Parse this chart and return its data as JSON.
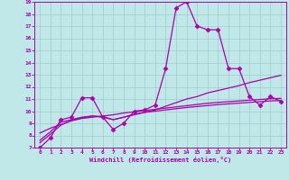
{
  "xlabel": "Windchill (Refroidissement éolien,°C)",
  "xlim": [
    -0.5,
    23.5
  ],
  "ylim": [
    7,
    19
  ],
  "yticks": [
    7,
    8,
    9,
    10,
    11,
    12,
    13,
    14,
    15,
    16,
    17,
    18,
    19
  ],
  "xticks": [
    0,
    1,
    2,
    3,
    4,
    5,
    6,
    7,
    8,
    9,
    10,
    11,
    12,
    13,
    14,
    15,
    16,
    17,
    18,
    19,
    20,
    21,
    22,
    23
  ],
  "background_color": "#c0e8e8",
  "grid_color": "#a0cccc",
  "line_color": "#aa00aa",
  "lines": [
    {
      "x": [
        0,
        1,
        2,
        3,
        4,
        5,
        6,
        7,
        8,
        9,
        10,
        11,
        12,
        13,
        14,
        15,
        16,
        17,
        18,
        19,
        20,
        21,
        22,
        23
      ],
      "y": [
        7.0,
        7.8,
        9.3,
        9.5,
        11.1,
        11.1,
        9.5,
        8.5,
        9.0,
        10.0,
        10.1,
        10.5,
        13.5,
        18.5,
        19.0,
        17.0,
        16.7,
        16.7,
        13.5,
        13.5,
        11.2,
        10.5,
        11.2,
        10.8
      ],
      "marker": "D",
      "markersize": 2.5,
      "linewidth": 0.9
    },
    {
      "x": [
        0,
        1,
        2,
        3,
        4,
        5,
        6,
        7,
        8,
        9,
        10,
        11,
        12,
        13,
        14,
        15,
        16,
        17,
        18,
        19,
        20,
        21,
        22,
        23
      ],
      "y": [
        7.6,
        8.3,
        9.1,
        9.3,
        9.5,
        9.6,
        9.5,
        9.3,
        9.5,
        9.7,
        9.9,
        10.1,
        10.4,
        10.7,
        11.0,
        11.2,
        11.5,
        11.7,
        11.9,
        12.1,
        12.35,
        12.55,
        12.75,
        12.95
      ],
      "marker": null,
      "markersize": 0,
      "linewidth": 0.9
    },
    {
      "x": [
        0,
        1,
        2,
        3,
        4,
        5,
        6,
        7,
        8,
        9,
        10,
        11,
        12,
        13,
        14,
        15,
        16,
        17,
        18,
        19,
        20,
        21,
        22,
        23
      ],
      "y": [
        8.2,
        8.6,
        8.9,
        9.2,
        9.4,
        9.5,
        9.6,
        9.7,
        9.85,
        9.95,
        10.05,
        10.15,
        10.25,
        10.35,
        10.45,
        10.55,
        10.65,
        10.72,
        10.78,
        10.84,
        10.9,
        10.96,
        11.02,
        11.05
      ],
      "marker": null,
      "markersize": 0,
      "linewidth": 0.9
    },
    {
      "x": [
        0,
        1,
        2,
        3,
        4,
        5,
        6,
        7,
        8,
        9,
        10,
        11,
        12,
        13,
        14,
        15,
        16,
        17,
        18,
        19,
        20,
        21,
        22,
        23
      ],
      "y": [
        7.4,
        8.1,
        8.85,
        9.25,
        9.45,
        9.6,
        9.55,
        9.3,
        9.5,
        9.75,
        9.9,
        10.0,
        10.1,
        10.2,
        10.3,
        10.38,
        10.46,
        10.54,
        10.6,
        10.66,
        10.72,
        10.78,
        10.84,
        10.88
      ],
      "marker": null,
      "markersize": 0,
      "linewidth": 0.9
    }
  ]
}
